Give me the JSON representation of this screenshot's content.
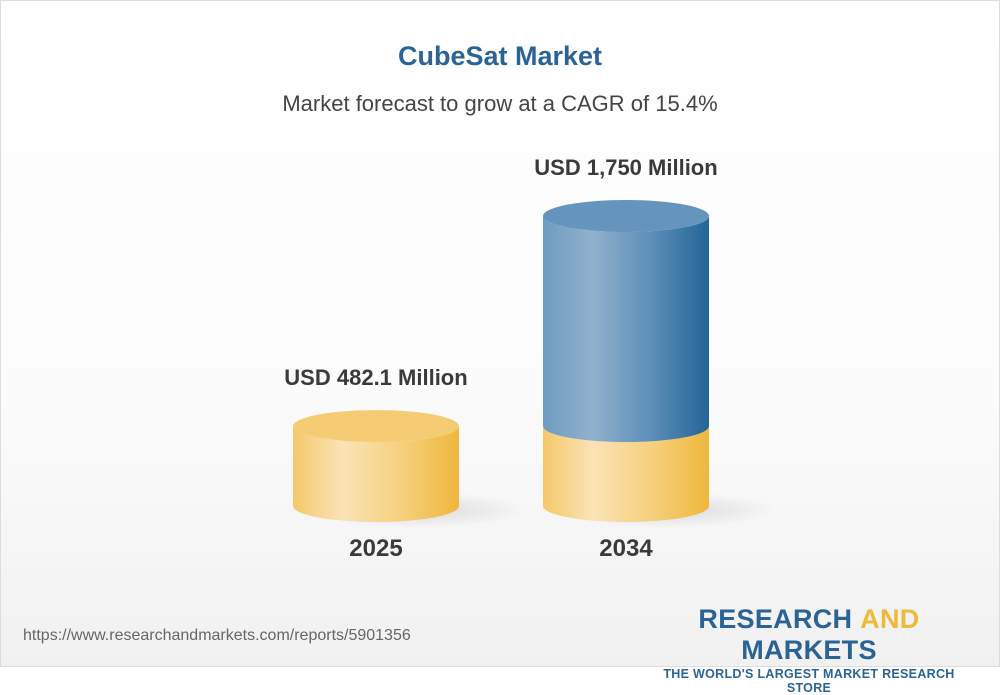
{
  "header": {
    "title": "CubeSat Market",
    "subtitle": "Market forecast to grow at a CAGR of 15.4%"
  },
  "chart_data": {
    "type": "bar",
    "style": "3d-cylinder",
    "categories": [
      "2025",
      "2034"
    ],
    "values": [
      482.1,
      1750
    ],
    "data_labels": [
      "USD 482.1 Million",
      "USD 1,750 Million"
    ],
    "unit": "USD Million",
    "colors": {
      "base": "#f3c35a",
      "growth": "#2a6496"
    },
    "grid": false
  },
  "footer": {
    "url": "https://www.researchandmarkets.com/reports/5901356",
    "logo": {
      "part1": "RESEARCH ",
      "part2": "AND",
      "part3": " MARKETS",
      "tagline": "THE WORLD'S LARGEST MARKET RESEARCH STORE"
    }
  }
}
